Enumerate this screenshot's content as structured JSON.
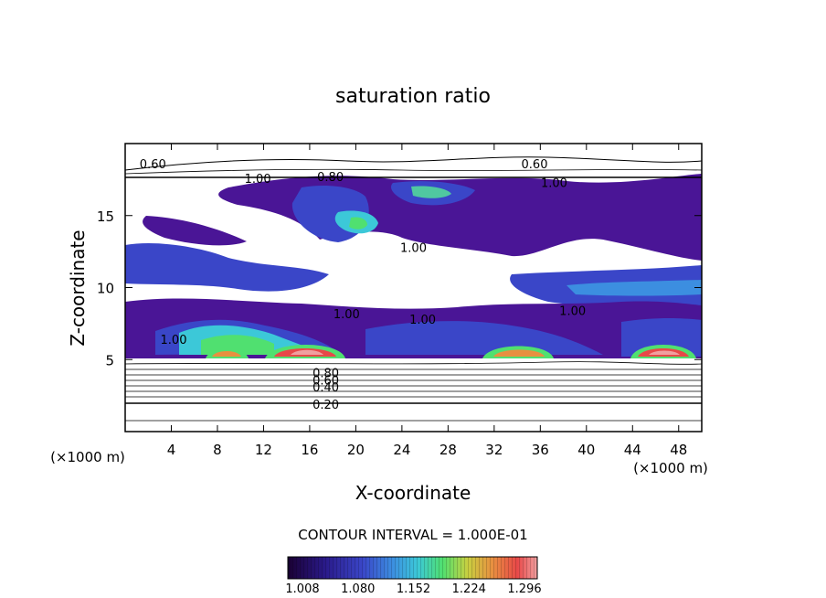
{
  "chart_data": {
    "type": "heatmap",
    "title": "saturation ratio",
    "xlabel": "X-coordinate",
    "ylabel": "Z-coordinate",
    "x_unit_left": "(×1000 m)",
    "x_unit_right": "(×1000 m)",
    "xlim": [
      0,
      50
    ],
    "ylim": [
      0,
      20
    ],
    "x_ticks": [
      4,
      8,
      12,
      16,
      20,
      24,
      28,
      32,
      36,
      40,
      44,
      48
    ],
    "y_ticks": [
      5,
      10,
      15
    ],
    "contour_interval_text": "CONTOUR INTERVAL = 1.000E-01",
    "colorbar": {
      "labels": [
        "1.008",
        "1.080",
        "1.152",
        "1.224",
        "1.296"
      ],
      "colors": [
        "#1a0033",
        "#2a1a8a",
        "#3a46c8",
        "#3c8ee0",
        "#3cc8d8",
        "#50e070",
        "#c8d040",
        "#e89040",
        "#e84848",
        "#f0a0a0"
      ]
    },
    "contour_labels": [
      {
        "text": "0.60",
        "x": 2.4,
        "z": 18.6
      },
      {
        "text": "0.60",
        "x": 35.5,
        "z": 18.6
      },
      {
        "text": "0.80",
        "x": 17.8,
        "z": 17.7
      },
      {
        "text": "1.00",
        "x": 11.5,
        "z": 17.6
      },
      {
        "text": "1.00",
        "x": 37.2,
        "z": 17.3
      },
      {
        "text": "1.00",
        "x": 25.0,
        "z": 12.8
      },
      {
        "text": "1.00",
        "x": 19.2,
        "z": 8.2
      },
      {
        "text": "1.00",
        "x": 25.8,
        "z": 7.8
      },
      {
        "text": "1.00",
        "x": 38.8,
        "z": 8.4
      },
      {
        "text": "1.00",
        "x": 4.2,
        "z": 6.4
      },
      {
        "text": "0.80",
        "x": 17.4,
        "z": 4.1
      },
      {
        "text": "0.60",
        "x": 17.4,
        "z": 3.6
      },
      {
        "text": "0.40",
        "x": 17.4,
        "z": 3.1
      },
      {
        "text": "0.20",
        "x": 17.4,
        "z": 1.9
      }
    ]
  }
}
